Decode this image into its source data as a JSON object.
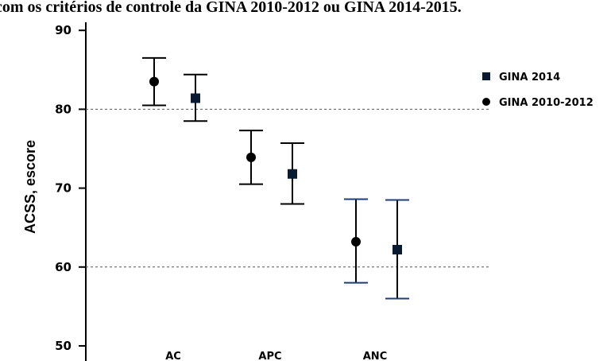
{
  "caption": "com os critérios de controle da GINA 2010-2012 ou GINA 2014-2015.",
  "chart_data": {
    "type": "scatter",
    "ylabel": "ACSS, escore",
    "xlabel": "",
    "ylim": [
      50,
      92
    ],
    "yticks": [
      50,
      60,
      70,
      80,
      90
    ],
    "categories": [
      "AC",
      "APC",
      "ANC"
    ],
    "reference_lines": [
      80,
      60
    ],
    "legend_position": "right",
    "series": [
      {
        "name": "GINA 2010-2012",
        "marker": "circle",
        "values": [
          83.5,
          73.9,
          63.2
        ],
        "lower": [
          80.5,
          70.5,
          58.0
        ],
        "upper": [
          86.5,
          77.3,
          68.6
        ],
        "colors": [
          "#000000",
          "#000000",
          "#1f3d7a"
        ]
      },
      {
        "name": "GINA 2014",
        "marker": "square",
        "values": [
          81.4,
          71.8,
          62.2
        ],
        "lower": [
          78.5,
          68.0,
          56.0
        ],
        "upper": [
          84.4,
          75.7,
          68.5
        ],
        "colors": [
          "#000000",
          "#000000",
          "#1f3d7a"
        ]
      }
    ]
  }
}
